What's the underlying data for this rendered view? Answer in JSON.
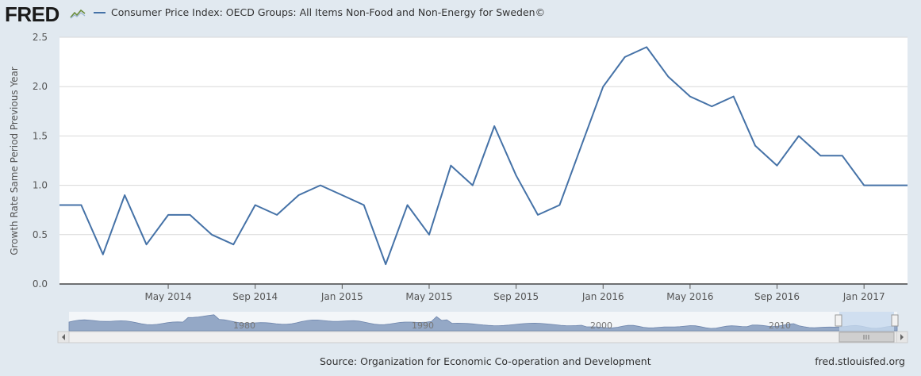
{
  "header": {
    "logo_text": "FRED",
    "logo_icon": "graph-sparkline-icon"
  },
  "colors": {
    "series": "#4572a7",
    "navigator_fill": "#94a8c6",
    "navigator_selection": "#c7d9ee",
    "background": "#e1e9f0"
  },
  "footer": {
    "source": "Source: Organization for Economic Co-operation and Development",
    "url": "fred.stlouisfed.org"
  },
  "chart_data": {
    "type": "line",
    "title": "",
    "xlabel": "",
    "ylabel": "Growth Rate Same Period Previous Year",
    "ylim": [
      0,
      2.5
    ],
    "yticks": [
      "0.0",
      "0.5",
      "1.0",
      "1.5",
      "2.0",
      "2.5"
    ],
    "xticks": [
      "May 2014",
      "Sep 2014",
      "Jan 2015",
      "May 2015",
      "Sep 2015",
      "Jan 2016",
      "May 2016",
      "Sep 2016",
      "Jan 2017"
    ],
    "navigator_labels": [
      "1980",
      "1990",
      "2000",
      "2010"
    ],
    "series": [
      {
        "name": "Consumer Price Index: OECD Groups: All Items Non-Food and Non-Energy for Sweden©",
        "x": [
          "2013-12",
          "2014-01",
          "2014-02",
          "2014-03",
          "2014-04",
          "2014-05",
          "2014-06",
          "2014-07",
          "2014-08",
          "2014-09",
          "2014-10",
          "2014-11",
          "2014-12",
          "2015-01",
          "2015-02",
          "2015-03",
          "2015-04",
          "2015-05",
          "2015-06",
          "2015-07",
          "2015-08",
          "2015-09",
          "2015-10",
          "2015-11",
          "2015-12",
          "2016-01",
          "2016-02",
          "2016-03",
          "2016-04",
          "2016-05",
          "2016-06",
          "2016-07",
          "2016-08",
          "2016-09",
          "2016-10",
          "2016-11",
          "2016-12",
          "2017-01",
          "2017-02",
          "2017-03"
        ],
        "values": [
          0.8,
          0.8,
          0.3,
          0.9,
          0.4,
          0.7,
          0.7,
          0.5,
          0.4,
          0.8,
          0.7,
          0.9,
          1.0,
          0.9,
          0.8,
          0.2,
          0.8,
          0.5,
          1.2,
          1.0,
          1.6,
          1.1,
          0.7,
          0.8,
          1.4,
          2.0,
          2.3,
          2.4,
          2.1,
          1.9,
          1.8,
          1.9,
          1.4,
          1.2,
          1.5,
          1.3,
          1.3,
          1.0,
          1.0,
          1.0
        ]
      }
    ]
  }
}
